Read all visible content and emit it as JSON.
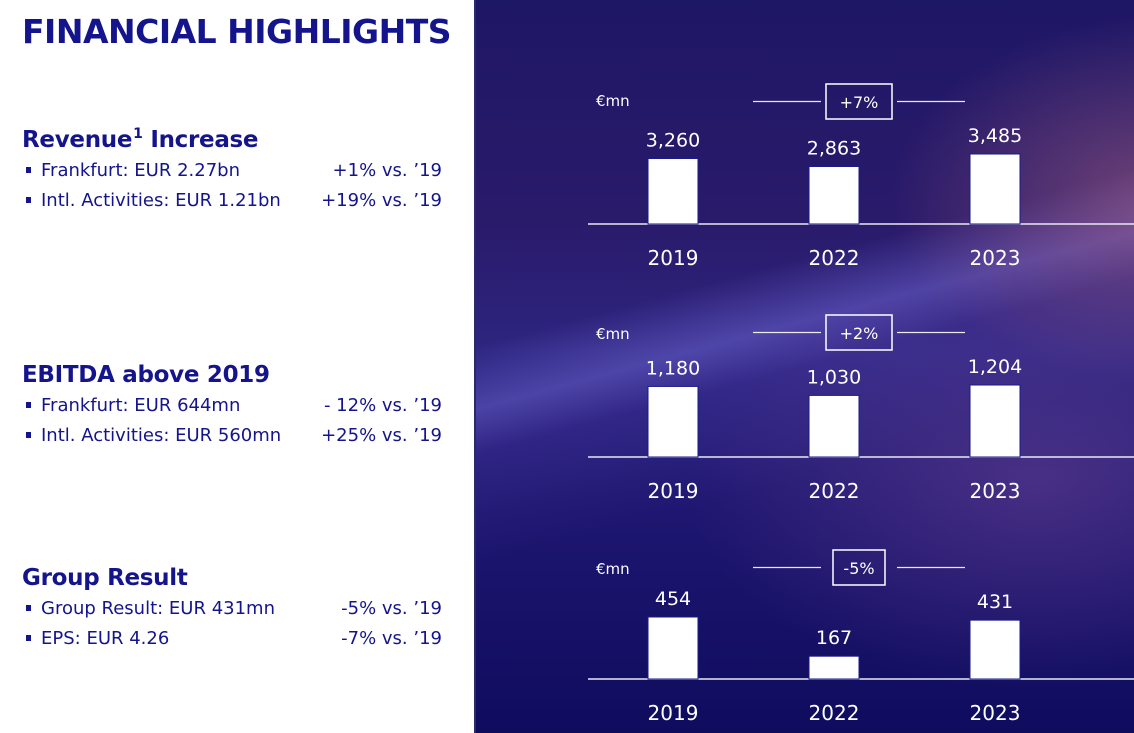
{
  "page": {
    "title": "FINANCIAL HIGHLIGHTS"
  },
  "sections": [
    {
      "heading": "Revenue",
      "heading_sup": "1",
      "heading_rest": " Increase",
      "bullets": [
        {
          "label": "Frankfurt: EUR 2.27bn",
          "change": "+1% vs. ’19"
        },
        {
          "label": "Intl. Activities: EUR 1.21bn",
          "change": "+19% vs. ’19"
        }
      ]
    },
    {
      "heading": "EBITDA above 2019",
      "heading_sup": "",
      "heading_rest": "",
      "bullets": [
        {
          "label": "Frankfurt: EUR 644mn",
          "change": "- 12% vs. ’19"
        },
        {
          "label": "Intl. Activities: EUR 560mn",
          "change": "+25% vs. ’19"
        }
      ]
    },
    {
      "heading": "Group Result",
      "heading_sup": "",
      "heading_rest": "",
      "bullets": [
        {
          "label": "Group Result: EUR 431mn",
          "change": "-5% vs. ’19"
        },
        {
          "label": "EPS: EUR 4.26",
          "change": "-7% vs. ’19"
        }
      ]
    }
  ],
  "colors": {
    "brand_navy": "#14148c",
    "bar_fill": "#ffffff",
    "text_on_dark": "#ffffff"
  },
  "chart_data": [
    {
      "type": "bar",
      "title": "Revenue",
      "unit_label": "€mn",
      "categories": [
        "2019",
        "2022",
        "2023"
      ],
      "values": [
        3260,
        2863,
        3485
      ],
      "value_labels": [
        "3,260",
        "2,863",
        "3,485"
      ],
      "change_badge": "+7%",
      "xlabel": "",
      "ylabel": "€mn",
      "ylim": [
        0,
        3485
      ],
      "grid": false
    },
    {
      "type": "bar",
      "title": "EBITDA",
      "unit_label": "€mn",
      "categories": [
        "2019",
        "2022",
        "2023"
      ],
      "values": [
        1180,
        1030,
        1204
      ],
      "value_labels": [
        "1,180",
        "1,030",
        "1,204"
      ],
      "change_badge": "+2%",
      "xlabel": "",
      "ylabel": "€mn",
      "ylim": [
        0,
        1204
      ],
      "grid": false
    },
    {
      "type": "bar",
      "title": "Group Result",
      "unit_label": "€mn",
      "categories": [
        "2019",
        "2022",
        "2023"
      ],
      "values": [
        454,
        167,
        431
      ],
      "value_labels": [
        "454",
        "167",
        "431"
      ],
      "change_badge": "-5%",
      "xlabel": "",
      "ylabel": "€mn",
      "ylim": [
        0,
        454
      ],
      "grid": false
    }
  ]
}
